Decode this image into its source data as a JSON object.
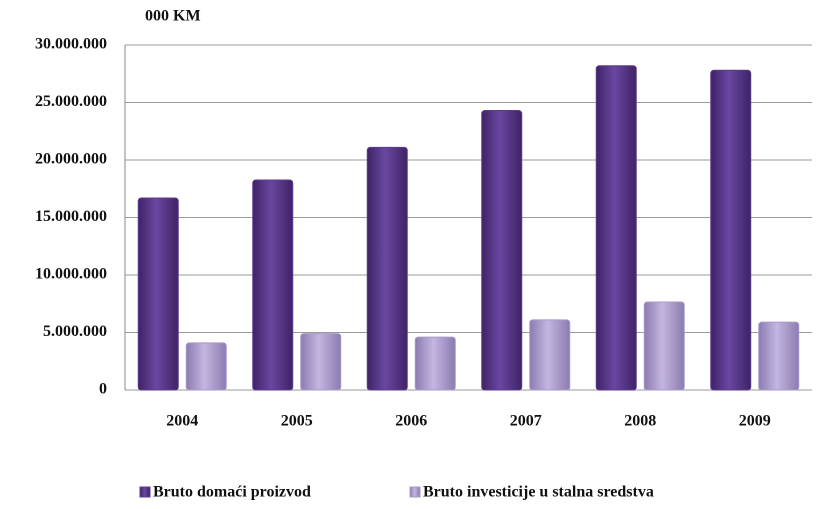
{
  "chart_data": {
    "type": "bar",
    "unit_label": "000 KM",
    "categories": [
      "2004",
      "2005",
      "2006",
      "2007",
      "2008",
      "2009"
    ],
    "series": [
      {
        "name": "Bruto domaći proizvod",
        "color": "#5c3b8e",
        "values": [
          16700000,
          18260000,
          21100000,
          24300000,
          28200000,
          27800000
        ]
      },
      {
        "name": "Bruto investicije u stalna sredstva",
        "color": "#a898c8",
        "values": [
          4100000,
          4900000,
          4600000,
          6100000,
          7650000,
          5900000
        ]
      }
    ],
    "ylim": [
      0,
      30000000
    ],
    "yticks": [
      0,
      {
        "value": 5000000,
        "label": "5.000.000"
      },
      {
        "value": 10000000,
        "label": "10.000.000"
      },
      {
        "value": 15000000,
        "label": "15.000.000"
      },
      {
        "value": 20000000,
        "label": "20.000.000"
      },
      {
        "value": 25000000,
        "label": "25.000.000"
      },
      {
        "value": 30000000,
        "label": "30.000.000"
      }
    ],
    "grid": true,
    "legend": "bottom"
  }
}
